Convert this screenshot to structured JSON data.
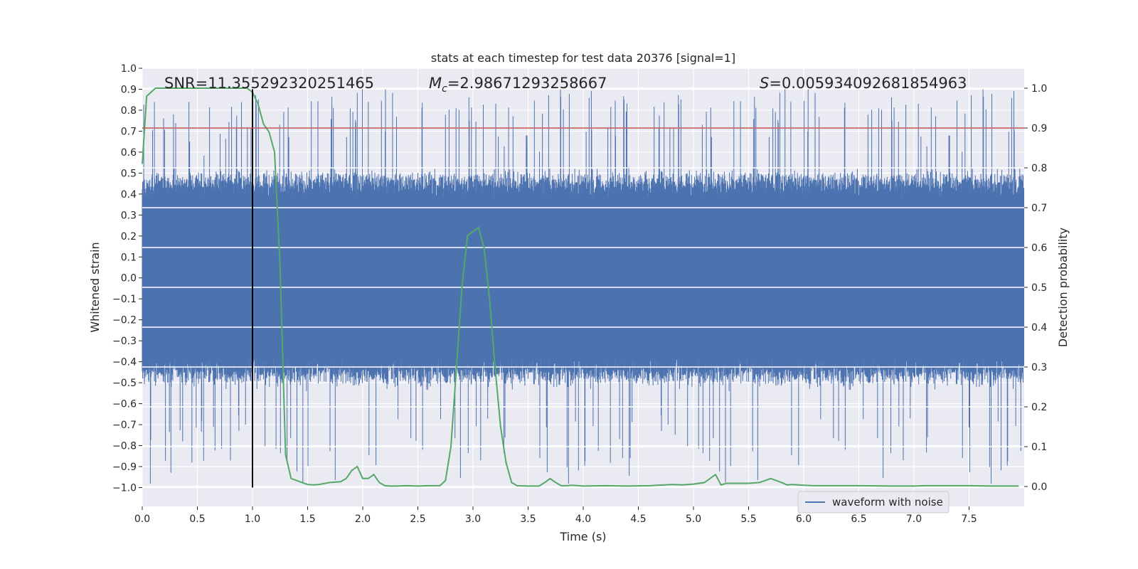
{
  "chart_data": {
    "type": "line",
    "title": "stats at each timestep for test data 20376 [signal=1]",
    "xlabel": "Time (s)",
    "ylabel_left": "Whitened strain",
    "ylabel_right": "Detection probability",
    "xlim": [
      0.0,
      8.0
    ],
    "ylim_left": [
      -1.09,
      1.0
    ],
    "ylim_right": [
      -0.05,
      1.05
    ],
    "x_ticks": [
      "0.0",
      "0.5",
      "1.0",
      "1.5",
      "2.0",
      "2.5",
      "3.0",
      "3.5",
      "4.0",
      "4.5",
      "5.0",
      "5.5",
      "6.0",
      "6.5",
      "7.0",
      "7.5"
    ],
    "y_ticks_left": [
      "1.0",
      "0.9",
      "0.8",
      "0.7",
      "0.6",
      "0.5",
      "0.4",
      "0.3",
      "0.2",
      "0.1",
      "0.0",
      "−0.1",
      "−0.2",
      "−0.3",
      "−0.4",
      "−0.5",
      "−0.6",
      "−0.7",
      "−0.8",
      "−0.9",
      "−1.0"
    ],
    "y_ticks_right": [
      "1.0",
      "0.9",
      "0.8",
      "0.7",
      "0.6",
      "0.5",
      "0.4",
      "0.3",
      "0.2",
      "0.1",
      "0.0"
    ],
    "annotations": {
      "snr": "SNR=11.355292320251465",
      "mc_symbol": "M",
      "mc_sub": "c",
      "mc_value": "=2.98671293258667",
      "s_symbol": "S",
      "s_value": "=0.005934092681854963"
    },
    "grid": true,
    "legend_position": "lower-right",
    "series": [
      {
        "name": "waveform with noise",
        "axis": "left",
        "style": "dense-noise",
        "typical_amplitude": 0.45,
        "max_value": 0.9,
        "min_value": -1.0
      }
    ],
    "probability_curve": {
      "axis": "right",
      "x": [
        0.0,
        0.04,
        0.08,
        0.12,
        0.2,
        0.3,
        0.4,
        0.5,
        0.6,
        0.7,
        0.8,
        0.9,
        0.95,
        1.0,
        1.05,
        1.1,
        1.15,
        1.2,
        1.25,
        1.3,
        1.35,
        1.4,
        1.45,
        1.5,
        1.55,
        1.6,
        1.7,
        1.8,
        1.85,
        1.9,
        1.95,
        2.0,
        2.05,
        2.1,
        2.15,
        2.2,
        2.25,
        2.3,
        2.4,
        2.5,
        2.6,
        2.7,
        2.75,
        2.8,
        2.85,
        2.9,
        2.95,
        3.0,
        3.05,
        3.1,
        3.15,
        3.2,
        3.25,
        3.3,
        3.35,
        3.4,
        3.5,
        3.6,
        3.65,
        3.7,
        3.75,
        3.8,
        3.85,
        3.9,
        4.0,
        4.2,
        4.4,
        4.6,
        4.8,
        4.9,
        5.0,
        5.1,
        5.2,
        5.25,
        5.3,
        5.4,
        5.5,
        5.6,
        5.7,
        5.75,
        5.8,
        5.85,
        5.9,
        6.0,
        6.1,
        6.2,
        6.5,
        6.8,
        7.0,
        7.1,
        7.3,
        7.5,
        7.7,
        7.95
      ],
      "y": [
        0.81,
        0.98,
        0.99,
        1.0,
        1.0,
        1.0,
        1.0,
        1.0,
        1.0,
        1.0,
        1.0,
        1.0,
        1.0,
        0.99,
        0.96,
        0.91,
        0.89,
        0.84,
        0.55,
        0.08,
        0.02,
        0.015,
        0.01,
        0.005,
        0.004,
        0.005,
        0.01,
        0.012,
        0.02,
        0.04,
        0.05,
        0.02,
        0.02,
        0.03,
        0.01,
        0.002,
        0.001,
        0.001,
        0.002,
        0.001,
        0.002,
        0.002,
        0.015,
        0.1,
        0.3,
        0.5,
        0.63,
        0.64,
        0.65,
        0.6,
        0.47,
        0.3,
        0.15,
        0.06,
        0.01,
        0.002,
        0.001,
        0.001,
        0.01,
        0.02,
        0.01,
        0.002,
        0.002,
        0.003,
        0.001,
        0.002,
        0.001,
        0.002,
        0.005,
        0.004,
        0.006,
        0.01,
        0.03,
        0.004,
        0.008,
        0.008,
        0.008,
        0.01,
        0.02,
        0.015,
        0.01,
        0.004,
        0.005,
        0.003,
        0.002,
        0.002,
        0.002,
        0.001,
        0.001,
        0.002,
        0.002,
        0.002,
        0.001,
        0.001
      ]
    },
    "threshold": {
      "axis": "right",
      "value": 0.9,
      "color": "#c44e52"
    },
    "marker_line": {
      "x": 1.0,
      "y_from": -1.0,
      "y_to": 0.9,
      "color": "#000000"
    },
    "colors": {
      "waveform": "#4c72b0",
      "probability": "#55a868",
      "plot_bg": "#eaeaf2",
      "grid": "#ffffff"
    }
  }
}
